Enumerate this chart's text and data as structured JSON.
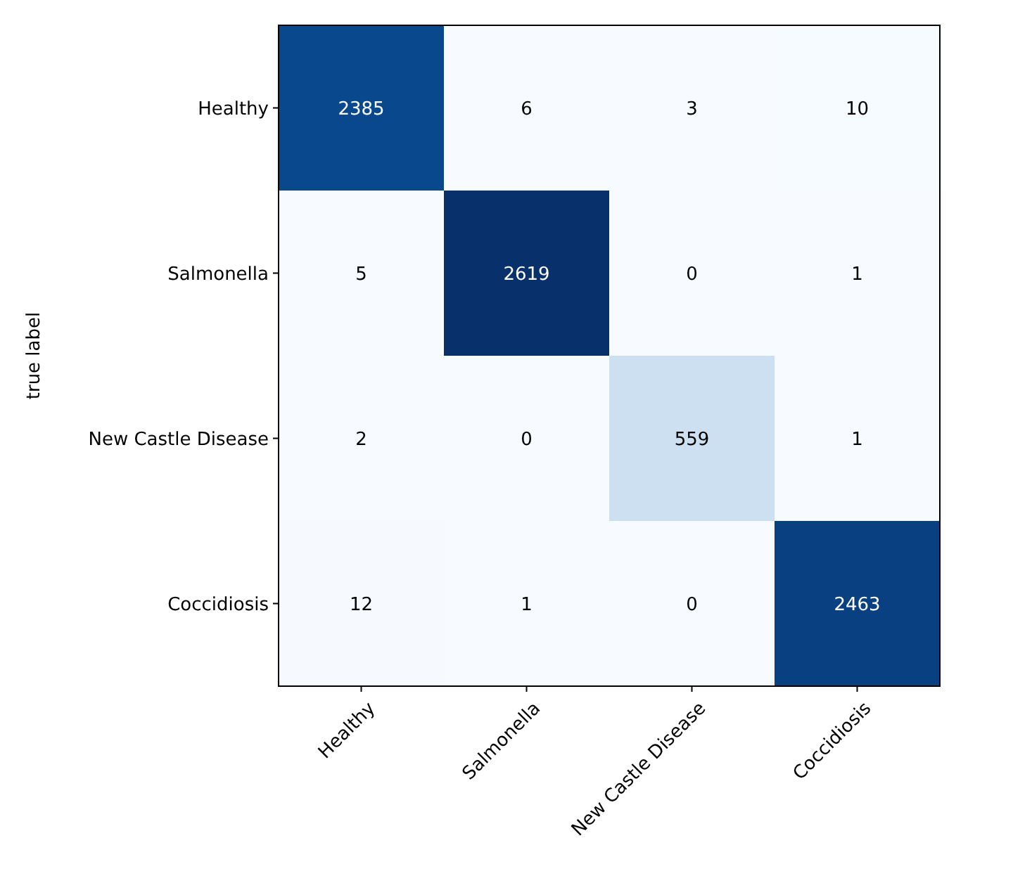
{
  "chart_data": {
    "type": "heatmap",
    "ylabel": "true label",
    "data_labels": true,
    "categories": [
      "Healthy",
      "Salmonella",
      "New Castle Disease",
      "Coccidiosis"
    ],
    "y_categories": [
      "Healthy",
      "Salmonella",
      "New Castle Disease",
      "Coccidiosis"
    ],
    "cells": [
      [
        2385,
        6,
        3,
        10
      ],
      [
        5,
        2619,
        0,
        1
      ],
      [
        2,
        0,
        559,
        1
      ],
      [
        12,
        1,
        0,
        2463
      ]
    ]
  }
}
